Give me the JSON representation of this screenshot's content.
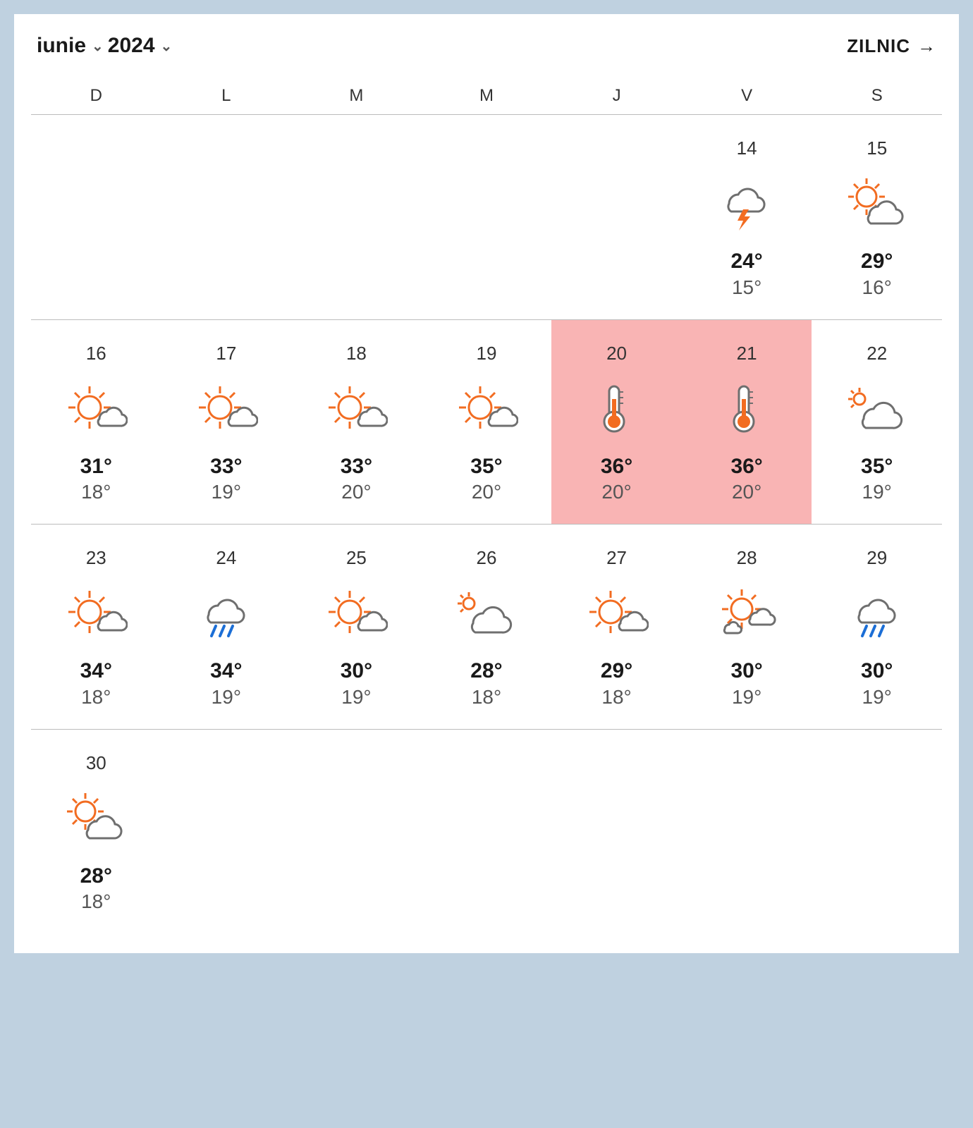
{
  "header": {
    "month_label": "iunie",
    "year_label": "2024",
    "daily_label": "ZILNIC"
  },
  "colors": {
    "page_bg": "#bfd1e0",
    "card_bg": "#ffffff",
    "text": "#1a1a1a",
    "muted": "#555555",
    "divider": "#bcbcbc",
    "highlight_bg": "#f9b4b4",
    "sun": "#f26c21",
    "cloud_stroke": "#6f6f6f",
    "rain": "#1b6ed6",
    "bolt": "#f26c21",
    "thermo": "#f26c21"
  },
  "day_headers": [
    "D",
    "L",
    "M",
    "M",
    "J",
    "V",
    "S"
  ],
  "weeks": [
    [
      {
        "empty": true
      },
      {
        "empty": true
      },
      {
        "empty": true
      },
      {
        "empty": true
      },
      {
        "empty": true
      },
      {
        "day": "14",
        "icon": "storm",
        "hi": "24°",
        "lo": "15°",
        "highlight": false
      },
      {
        "day": "15",
        "icon": "sun-cloud-big",
        "hi": "29°",
        "lo": "16°",
        "highlight": false
      }
    ],
    [
      {
        "day": "16",
        "icon": "sun-cloud",
        "hi": "31°",
        "lo": "18°",
        "highlight": false
      },
      {
        "day": "17",
        "icon": "sun-cloud",
        "hi": "33°",
        "lo": "19°",
        "highlight": false
      },
      {
        "day": "18",
        "icon": "sun-cloud",
        "hi": "33°",
        "lo": "20°",
        "highlight": false
      },
      {
        "day": "19",
        "icon": "sun-cloud",
        "hi": "35°",
        "lo": "20°",
        "highlight": false
      },
      {
        "day": "20",
        "icon": "thermo",
        "hi": "36°",
        "lo": "20°",
        "highlight": true
      },
      {
        "day": "21",
        "icon": "thermo",
        "hi": "36°",
        "lo": "20°",
        "highlight": true
      },
      {
        "day": "22",
        "icon": "cloud-sun-small",
        "hi": "35°",
        "lo": "19°",
        "highlight": false
      }
    ],
    [
      {
        "day": "23",
        "icon": "sun-cloud",
        "hi": "34°",
        "lo": "18°",
        "highlight": false
      },
      {
        "day": "24",
        "icon": "rain",
        "hi": "34°",
        "lo": "19°",
        "highlight": false
      },
      {
        "day": "25",
        "icon": "sun-cloud",
        "hi": "30°",
        "lo": "19°",
        "highlight": false
      },
      {
        "day": "26",
        "icon": "cloud-sun-small",
        "hi": "28°",
        "lo": "18°",
        "highlight": false
      },
      {
        "day": "27",
        "icon": "sun-cloud",
        "hi": "29°",
        "lo": "18°",
        "highlight": false
      },
      {
        "day": "28",
        "icon": "sun-clouds",
        "hi": "30°",
        "lo": "19°",
        "highlight": false
      },
      {
        "day": "29",
        "icon": "rain",
        "hi": "30°",
        "lo": "19°",
        "highlight": false
      }
    ],
    [
      {
        "day": "30",
        "icon": "sun-cloud-big",
        "hi": "28°",
        "lo": "18°",
        "highlight": false
      },
      {
        "empty": true
      },
      {
        "empty": true
      },
      {
        "empty": true
      },
      {
        "empty": true
      },
      {
        "empty": true
      },
      {
        "empty": true
      }
    ]
  ]
}
